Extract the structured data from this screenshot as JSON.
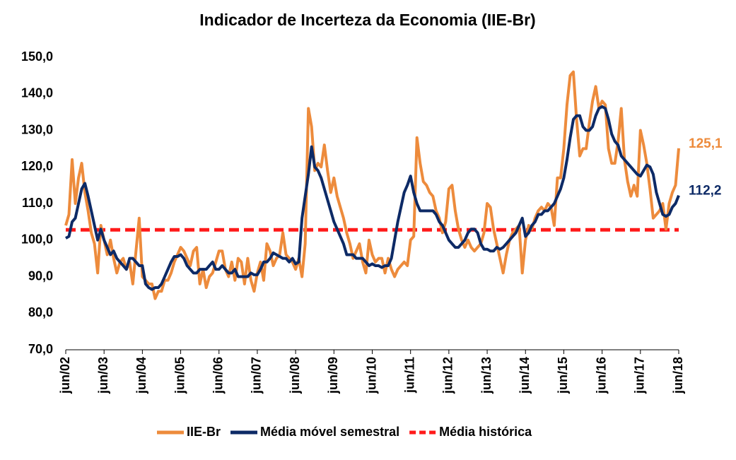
{
  "chart_data": {
    "type": "line",
    "title": "Indicador de Incerteza da Economia (IIE-Br)",
    "categories": [
      "jun/02",
      null,
      null,
      null,
      null,
      null,
      null,
      null,
      null,
      null,
      null,
      null,
      "jun/03",
      null,
      null,
      null,
      null,
      null,
      null,
      null,
      null,
      null,
      null,
      null,
      "jun/04",
      null,
      null,
      null,
      null,
      null,
      null,
      null,
      null,
      null,
      null,
      null,
      "jun/05",
      null,
      null,
      null,
      null,
      null,
      null,
      null,
      null,
      null,
      null,
      null,
      "jun/06",
      null,
      null,
      null,
      null,
      null,
      null,
      null,
      null,
      null,
      null,
      null,
      "jun/07",
      null,
      null,
      null,
      null,
      null,
      null,
      null,
      null,
      null,
      null,
      null,
      "jun/08",
      null,
      null,
      null,
      null,
      null,
      null,
      null,
      null,
      null,
      null,
      null,
      "jun/09",
      null,
      null,
      null,
      null,
      null,
      null,
      null,
      null,
      null,
      null,
      null,
      "jun/10",
      null,
      null,
      null,
      null,
      null,
      null,
      null,
      null,
      null,
      null,
      null,
      "jun/11",
      null,
      null,
      null,
      null,
      null,
      null,
      null,
      null,
      null,
      null,
      null,
      "jun/12",
      null,
      null,
      null,
      null,
      null,
      null,
      null,
      null,
      null,
      null,
      null,
      "jun/13",
      null,
      null,
      null,
      null,
      null,
      null,
      null,
      null,
      null,
      null,
      null,
      "jun/14",
      null,
      null,
      null,
      null,
      null,
      null,
      null,
      null,
      null,
      null,
      null,
      "jun/15",
      null,
      null,
      null,
      null,
      null,
      null,
      null,
      null,
      null,
      null,
      null,
      "jun/16",
      null,
      null,
      null,
      null,
      null,
      null,
      null,
      null,
      null,
      null,
      null,
      "jun/17",
      null,
      null,
      null,
      null,
      null,
      null,
      null,
      null,
      null,
      null,
      null,
      "jun/18"
    ],
    "series": [
      {
        "name": "IIE-Br",
        "color": "#ed8b3c",
        "end_label": "125,1",
        "values": [
          104,
          107,
          122,
          110,
          117,
          121,
          113,
          108,
          102,
          99,
          91,
          104,
          100,
          96,
          100,
          95,
          91,
          94,
          95,
          92,
          94,
          88,
          97,
          106,
          90,
          89,
          88,
          88,
          84,
          86,
          86,
          89,
          89,
          91,
          94,
          96,
          98,
          97,
          95,
          93,
          97,
          98,
          88,
          92,
          87,
          90,
          91,
          94,
          97,
          97,
          92,
          90,
          94,
          89,
          95,
          94,
          88,
          95,
          89,
          86,
          91,
          94,
          89,
          99,
          97,
          93,
          95,
          96,
          102,
          96,
          95,
          94,
          92,
          95,
          90,
          99,
          136,
          131,
          119,
          121,
          120,
          126,
          119,
          113,
          117,
          112,
          109,
          106,
          102,
          99,
          95,
          97,
          99,
          94,
          91,
          100,
          96,
          94,
          95,
          95,
          91,
          95,
          92,
          90,
          92,
          93,
          94,
          93,
          100,
          101,
          128,
          121,
          116,
          115,
          113,
          112,
          108,
          106,
          102,
          105,
          114,
          115,
          108,
          103,
          100,
          98,
          100,
          98,
          97,
          98,
          99,
          102,
          110,
          109,
          103,
          99,
          95,
          91,
          96,
          100,
          102,
          103,
          104,
          91,
          100,
          104,
          103,
          106,
          108,
          109,
          108,
          110,
          109,
          104,
          117,
          117,
          125,
          137,
          145,
          146,
          133,
          123,
          125,
          125,
          132,
          138,
          142,
          136,
          138,
          137,
          125,
          121,
          121,
          127,
          136,
          122,
          116,
          112,
          115,
          112,
          130,
          126,
          121,
          114,
          106,
          107,
          108,
          110,
          103,
          110,
          113,
          115,
          125.1
        ]
      },
      {
        "name": "Média móvel semestral",
        "color": "#0d2a66",
        "end_label": "112,2",
        "values": [
          100.5,
          101,
          105,
          106,
          110,
          114,
          115.5,
          112,
          108,
          104,
          100,
          103,
          100,
          98,
          96,
          97,
          95,
          94,
          93,
          92,
          95,
          95,
          94,
          93,
          93,
          88,
          87,
          86.5,
          87,
          87,
          88,
          90,
          92,
          94,
          95.5,
          95.5,
          96,
          95,
          93,
          92,
          91,
          91,
          92,
          92,
          92,
          93,
          94,
          92,
          92,
          93,
          92,
          91,
          91,
          92,
          90,
          90,
          90,
          90,
          91,
          90.5,
          90.5,
          92,
          94,
          94,
          95,
          96.5,
          96,
          95.5,
          95,
          95,
          94,
          95,
          93.5,
          94,
          106,
          112,
          118,
          125.5,
          120,
          119,
          117,
          114,
          111,
          108,
          105,
          103,
          101,
          99,
          96,
          96,
          96,
          95,
          95,
          95,
          94,
          93,
          93.5,
          93,
          93,
          92.5,
          93,
          93,
          95,
          100,
          105,
          109,
          113,
          115,
          117.5,
          113,
          110,
          108,
          108,
          108,
          108,
          108,
          107,
          105,
          104,
          102,
          100,
          99,
          98,
          98,
          99,
          100,
          102,
          103,
          103,
          102,
          99,
          97.5,
          97.5,
          97,
          97,
          98,
          97.5,
          98,
          99,
          100,
          101,
          102,
          104,
          106,
          101,
          102,
          104,
          105,
          107,
          107,
          108,
          108,
          109,
          110,
          112,
          114,
          117,
          122,
          128,
          133,
          134,
          134,
          131,
          130,
          130,
          131,
          134,
          136,
          136.5,
          136,
          133,
          129,
          127,
          126,
          123,
          122,
          121,
          120,
          119,
          118,
          117.5,
          119,
          120.5,
          120,
          118,
          113,
          110,
          107,
          106.5,
          107,
          109,
          110,
          112.2
        ]
      }
    ],
    "hlines": [
      {
        "name": "Média histórica",
        "color": "#ff1a1a",
        "value": 102.8
      }
    ],
    "ylim": [
      70,
      150
    ],
    "yticks": [
      {
        "value": 70,
        "label": "70,0"
      },
      {
        "value": 80,
        "label": "80,0"
      },
      {
        "value": 90,
        "label": "90,0"
      },
      {
        "value": 100,
        "label": "100,0"
      },
      {
        "value": 110,
        "label": "110,0"
      },
      {
        "value": 120,
        "label": "120,0"
      },
      {
        "value": 130,
        "label": "130,0"
      },
      {
        "value": 140,
        "label": "140,0"
      },
      {
        "value": 150,
        "label": "150,0"
      }
    ],
    "grid": false,
    "legend": "bottom"
  }
}
